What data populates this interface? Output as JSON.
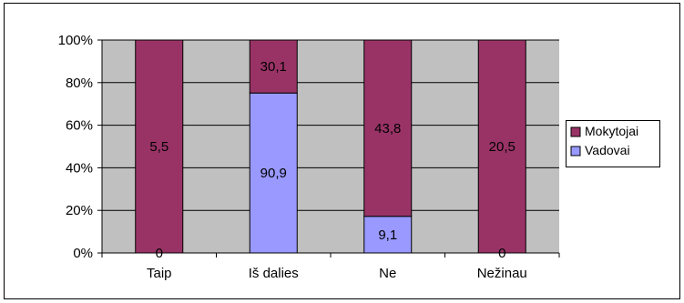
{
  "chart_data": {
    "type": "bar",
    "stacked": "percent",
    "categories": [
      "Taip",
      "Iš dalies",
      "Ne",
      "Nežinau"
    ],
    "series": [
      {
        "name": "Vadovai",
        "values": [
          0,
          90.9,
          9.1,
          0
        ],
        "color": "#9999ff"
      },
      {
        "name": "Mokytojai",
        "values": [
          5.5,
          30.1,
          43.8,
          20.5
        ],
        "color": "#993366"
      }
    ],
    "yticks": [
      "0%",
      "20%",
      "40%",
      "60%",
      "80%",
      "100%"
    ],
    "ylim": [
      0,
      100
    ],
    "grid": true,
    "plot_background": "#c0c0c0",
    "legend_position": "right",
    "legend_order": [
      "Mokytojai",
      "Vadovai"
    ],
    "title": "",
    "xlabel": "",
    "ylabel": ""
  }
}
